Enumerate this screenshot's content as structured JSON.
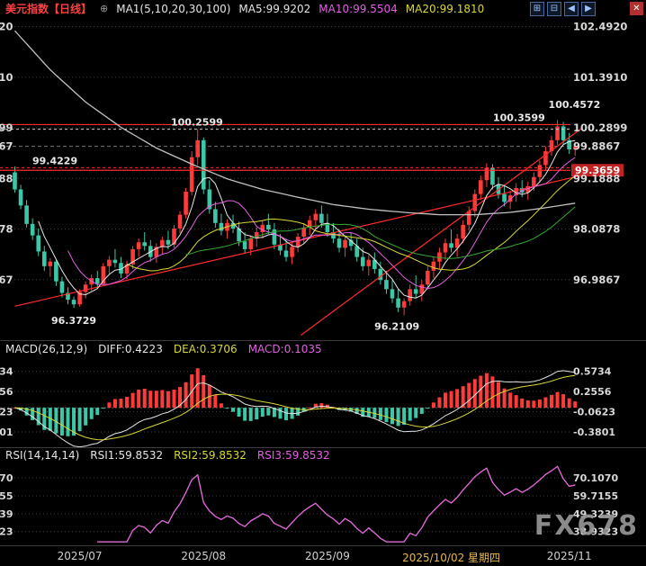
{
  "header": {
    "title": "美元指数【日线】",
    "collapse_icon": "⊕",
    "ma_group_label": "MA1(5,10,20,30,100)",
    "ma5_label": "MA5:99.9202",
    "ma10_label": "MA10:99.5504",
    "ma20_label": "MA20:99.1810"
  },
  "window_controls": {
    "icons": [
      {
        "name": "layout-grid-icon",
        "glyph": "⊞"
      },
      {
        "name": "layout-split-icon",
        "glyph": "⊟"
      },
      {
        "name": "scroll-left-icon",
        "glyph": "◀"
      },
      {
        "name": "scroll-right-icon",
        "glyph": "▶"
      }
    ],
    "close_glyph": "✕"
  },
  "macd_header": {
    "title": "MACD(26,12,9)",
    "diff": "DIFF:0.4223",
    "dea": "DEA:0.3706",
    "macd": "MACD:0.1035"
  },
  "rsi_header": {
    "title": "RSI(14,14,14)",
    "rsi1": "RSI1:59.8532",
    "rsi2": "RSI2:59.8532",
    "rsi3": "RSI3:59.8532"
  },
  "watermark": "FX678",
  "colors": {
    "up": "#ff3a3a",
    "down": "#3cc8a8",
    "ma5": "#e8e8e8",
    "ma10": "#e55fe5",
    "ma20": "#d8d833",
    "ma30": "#33aa33",
    "ma100": "#c0c0c0",
    "alert": "#ff2b2b",
    "axis_text": "#d9d9d9",
    "grid": "#3f3f3f",
    "date_highlight": "#e8b84b"
  },
  "chart_data": {
    "type": "candlestick",
    "title": "美元指数 日线",
    "x_ticks": [
      {
        "i": 11,
        "label": "2025/07",
        "highlight": false
      },
      {
        "i": 32,
        "label": "2025/08",
        "highlight": false
      },
      {
        "i": 53,
        "label": "2025/09",
        "highlight": false
      },
      {
        "i": 74,
        "label": "2025/10/02 星期四",
        "highlight": true
      },
      {
        "i": 94,
        "label": "2025/11",
        "highlight": false
      }
    ],
    "main_axis": [
      {
        "text": "102.4920",
        "value": 102.492,
        "grid": true,
        "last_price": false
      },
      {
        "text": "101.3910",
        "value": 101.391,
        "grid": true,
        "last_price": false
      },
      {
        "text": "100.2899",
        "value": 100.2899,
        "grid": true,
        "last_price": false
      },
      {
        "text": "99.8867",
        "value": 99.8867,
        "grid": false,
        "last_price": true
      },
      {
        "text": "99.1888",
        "value": 99.1888,
        "grid": true,
        "last_price": false
      },
      {
        "text": "98.0878",
        "value": 98.0878,
        "grid": true,
        "last_price": false
      },
      {
        "text": "96.9867",
        "value": 96.9867,
        "grid": true,
        "last_price": false
      }
    ],
    "h_lines": [
      {
        "value": 100.3599,
        "style": "solid",
        "label": "100.3599",
        "label_x": 548
      },
      {
        "value": 100.2599,
        "style": "dotted",
        "label": "100.2599",
        "label_x": 190,
        "gray": true
      },
      {
        "value": 99.4229,
        "style": "dotted",
        "label": "99.4229",
        "label_x": 36
      },
      {
        "value": 99.3659,
        "style": "solid",
        "tag": "99.3659"
      }
    ],
    "trend_lines": [
      {
        "i1": 0,
        "p1": 96.41,
        "i2": 96,
        "p2": 99.25
      },
      {
        "i1": 48.5,
        "p1": 95.78,
        "i2": 96,
        "p2": 100.27
      }
    ],
    "annotations": [
      {
        "text": "100.4572",
        "i": 92,
        "price": 100.72,
        "anchor": "start",
        "dxpx": -10
      },
      {
        "text": "96.3729",
        "i": 10,
        "price": 96.02,
        "anchor": "middle",
        "dxpx": 0
      },
      {
        "text": "96.2109",
        "i": 66,
        "price": 95.9,
        "anchor": "middle",
        "dxpx": -8
      }
    ],
    "ma_periods": [
      5,
      10,
      20,
      30,
      100
    ],
    "ma_current": {
      "MA5": 99.9202,
      "MA10": 99.5504,
      "MA20": 99.181
    },
    "candles": [
      [
        99.32,
        99.45,
        98.88,
        98.95
      ],
      [
        98.95,
        99.05,
        98.52,
        98.6
      ],
      [
        98.6,
        98.72,
        98.12,
        98.2
      ],
      [
        98.2,
        98.32,
        97.85,
        97.95
      ],
      [
        97.95,
        98.1,
        97.5,
        97.6
      ],
      [
        97.6,
        97.72,
        97.18,
        97.28
      ],
      [
        97.28,
        97.45,
        97.05,
        97.38
      ],
      [
        97.38,
        97.42,
        96.85,
        96.95
      ],
      [
        96.95,
        97.05,
        96.6,
        96.7
      ],
      [
        96.7,
        96.82,
        96.45,
        96.55
      ],
      [
        96.55,
        96.62,
        96.3729,
        96.45
      ],
      [
        96.45,
        96.78,
        96.4,
        96.72
      ],
      [
        96.72,
        96.95,
        96.58,
        96.88
      ],
      [
        96.88,
        97.1,
        96.75,
        97.02
      ],
      [
        97.02,
        97.18,
        96.8,
        96.9
      ],
      [
        96.9,
        97.35,
        96.85,
        97.28
      ],
      [
        97.28,
        97.5,
        97.12,
        97.42
      ],
      [
        97.42,
        97.65,
        97.25,
        97.35
      ],
      [
        97.35,
        97.48,
        97.02,
        97.12
      ],
      [
        97.12,
        97.4,
        97.0,
        97.32
      ],
      [
        97.32,
        97.72,
        97.22,
        97.65
      ],
      [
        97.65,
        97.88,
        97.48,
        97.8
      ],
      [
        97.8,
        98.02,
        97.62,
        97.72
      ],
      [
        97.72,
        97.85,
        97.38,
        97.48
      ],
      [
        97.48,
        97.78,
        97.35,
        97.7
      ],
      [
        97.7,
        97.92,
        97.55,
        97.85
      ],
      [
        97.85,
        98.05,
        97.65,
        97.75
      ],
      [
        97.75,
        98.18,
        97.68,
        98.1
      ],
      [
        98.1,
        98.48,
        98.0,
        98.4
      ],
      [
        98.4,
        98.98,
        98.32,
        98.9
      ],
      [
        98.9,
        99.78,
        98.82,
        99.65
      ],
      [
        99.65,
        100.2599,
        99.48,
        100.02
      ],
      [
        100.02,
        100.08,
        98.85,
        98.95
      ],
      [
        98.95,
        99.15,
        98.42,
        98.52
      ],
      [
        98.52,
        98.68,
        98.12,
        98.22
      ],
      [
        98.22,
        98.42,
        97.95,
        98.05
      ],
      [
        98.05,
        98.3,
        97.88,
        98.22
      ],
      [
        98.22,
        98.4,
        98.0,
        98.1
      ],
      [
        98.1,
        98.25,
        97.72,
        97.82
      ],
      [
        97.82,
        98.02,
        97.55,
        97.65
      ],
      [
        97.65,
        97.95,
        97.52,
        97.88
      ],
      [
        97.88,
        98.12,
        97.7,
        98.02
      ],
      [
        98.02,
        98.28,
        97.88,
        98.18
      ],
      [
        98.18,
        98.42,
        97.98,
        98.08
      ],
      [
        98.08,
        98.22,
        97.65,
        97.75
      ],
      [
        97.75,
        97.98,
        97.52,
        97.62
      ],
      [
        97.62,
        97.88,
        97.38,
        97.48
      ],
      [
        97.48,
        97.78,
        97.32,
        97.7
      ],
      [
        97.7,
        98.0,
        97.58,
        97.92
      ],
      [
        97.92,
        98.22,
        97.78,
        98.12
      ],
      [
        98.12,
        98.38,
        97.95,
        98.28
      ],
      [
        98.28,
        98.52,
        98.1,
        98.42
      ],
      [
        98.42,
        98.6,
        98.12,
        98.22
      ],
      [
        98.22,
        98.42,
        97.92,
        98.02
      ],
      [
        98.02,
        98.22,
        97.78,
        97.88
      ],
      [
        97.88,
        98.08,
        97.58,
        97.68
      ],
      [
        97.68,
        97.95,
        97.48,
        97.85
      ],
      [
        97.85,
        98.02,
        97.62,
        97.72
      ],
      [
        97.72,
        97.88,
        97.38,
        97.48
      ],
      [
        97.48,
        97.68,
        97.18,
        97.28
      ],
      [
        97.28,
        97.52,
        97.08,
        97.42
      ],
      [
        97.42,
        97.58,
        97.12,
        97.22
      ],
      [
        97.22,
        97.38,
        96.88,
        96.98
      ],
      [
        96.98,
        97.18,
        96.68,
        96.78
      ],
      [
        96.78,
        96.98,
        96.48,
        96.58
      ],
      [
        96.58,
        96.78,
        96.28,
        96.38
      ],
      [
        96.38,
        96.58,
        96.2109,
        96.52
      ],
      [
        96.52,
        96.88,
        96.42,
        96.78
      ],
      [
        96.78,
        97.08,
        96.58,
        96.68
      ],
      [
        96.68,
        96.98,
        96.52,
        96.88
      ],
      [
        96.88,
        97.28,
        96.78,
        97.18
      ],
      [
        97.18,
        97.48,
        97.02,
        97.38
      ],
      [
        97.38,
        97.68,
        97.22,
        97.58
      ],
      [
        97.58,
        97.88,
        97.42,
        97.78
      ],
      [
        97.78,
        98.08,
        97.58,
        97.68
      ],
      [
        97.68,
        97.98,
        97.48,
        97.88
      ],
      [
        97.88,
        98.28,
        97.78,
        98.18
      ],
      [
        98.18,
        98.58,
        98.05,
        98.48
      ],
      [
        98.48,
        98.95,
        98.35,
        98.85
      ],
      [
        98.85,
        99.25,
        98.72,
        99.15
      ],
      [
        99.15,
        99.52,
        99.0,
        99.42
      ],
      [
        99.42,
        99.5,
        98.95,
        99.05
      ],
      [
        99.05,
        99.22,
        98.75,
        98.85
      ],
      [
        98.85,
        99.02,
        98.58,
        98.68
      ],
      [
        98.68,
        98.92,
        98.52,
        98.82
      ],
      [
        98.82,
        99.08,
        98.68,
        98.98
      ],
      [
        98.98,
        99.15,
        98.78,
        98.88
      ],
      [
        98.88,
        99.12,
        98.72,
        99.02
      ],
      [
        99.02,
        99.32,
        98.92,
        99.22
      ],
      [
        99.22,
        99.58,
        99.12,
        99.48
      ],
      [
        99.48,
        99.88,
        99.38,
        99.78
      ],
      [
        99.78,
        100.12,
        99.68,
        100.02
      ],
      [
        100.02,
        100.4572,
        99.92,
        100.32
      ],
      [
        100.32,
        100.42,
        99.92,
        100.02
      ],
      [
        100.02,
        100.18,
        99.72,
        99.82
      ],
      [
        99.82,
        99.98,
        99.68,
        99.8867
      ]
    ],
    "ma100_points": [
      [
        0,
        102.4
      ],
      [
        6,
        101.55
      ],
      [
        12,
        100.85
      ],
      [
        18,
        100.3
      ],
      [
        24,
        99.85
      ],
      [
        30,
        99.5
      ],
      [
        36,
        99.18
      ],
      [
        42,
        98.95
      ],
      [
        48,
        98.78
      ],
      [
        54,
        98.62
      ],
      [
        60,
        98.52
      ],
      [
        66,
        98.45
      ],
      [
        72,
        98.4
      ],
      [
        78,
        98.4
      ],
      [
        84,
        98.45
      ],
      [
        90,
        98.55
      ],
      [
        95,
        98.65
      ]
    ],
    "macd": {
      "params": [
        26,
        12,
        9
      ],
      "current": {
        "diff": 0.4223,
        "dea": 0.3706,
        "macd": 0.1035
      },
      "axis": [
        {
          "text": "0.5734",
          "value": 0.5734
        },
        {
          "text": "0.2556",
          "value": 0.2556
        },
        {
          "text": "-0.0623",
          "value": -0.0623
        },
        {
          "text": "-0.3801",
          "value": -0.3801
        }
      ]
    },
    "rsi": {
      "params": [
        14,
        14,
        14
      ],
      "current": {
        "rsi1": 59.8532,
        "rsi2": 59.8532,
        "rsi3": 59.8532
      },
      "axis": [
        {
          "text": "70.1070",
          "value": 70.107
        },
        {
          "text": "59.7155",
          "value": 59.7155
        },
        {
          "text": "49.3239",
          "value": 49.3239
        },
        {
          "text": "38.9323",
          "value": 38.9323
        }
      ]
    }
  }
}
